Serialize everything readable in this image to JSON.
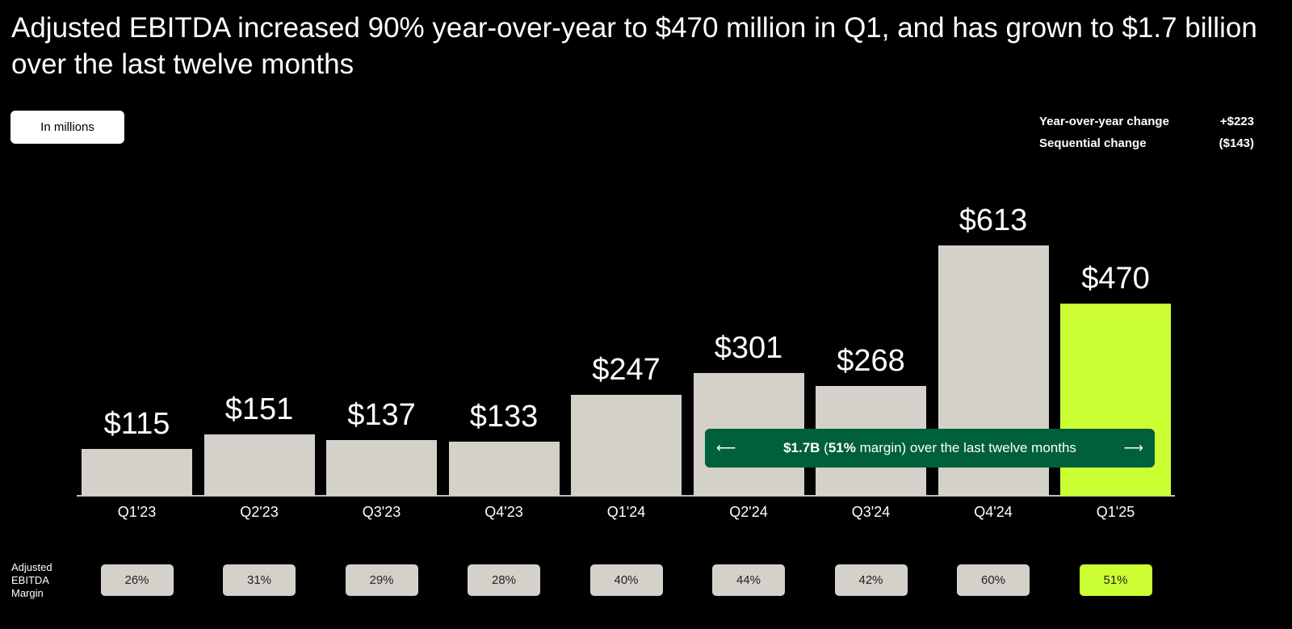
{
  "title": "Adjusted EBITDA increased 90% year-over-year to $470 million in Q1, and has grown to $1.7 billion over the last twelve months",
  "unit_label": "In millions",
  "stats": [
    {
      "label": "Year-over-year change",
      "value": "+$223"
    },
    {
      "label": "Sequential change",
      "value": "($143)"
    }
  ],
  "annotation": {
    "bold1": "$1.7B",
    "open": " (",
    "bold2": "51%",
    "rest": " margin) over the last twelve months",
    "left_arrow": "⟵",
    "right_arrow": "⟶"
  },
  "margin_label": "Adjusted EBITDA Margin",
  "colors": {
    "bar": "#d4d1cb",
    "highlight": "#ccff33",
    "annotation": "#006039"
  },
  "chart_data": {
    "type": "bar",
    "title": "Adjusted EBITDA",
    "ylabel": "In millions",
    "ylim": [
      0,
      613
    ],
    "categories": [
      "Q1'23",
      "Q2'23",
      "Q3'23",
      "Q4'23",
      "Q1'24",
      "Q2'24",
      "Q3'24",
      "Q4'24",
      "Q1'25"
    ],
    "values": [
      115,
      151,
      137,
      133,
      247,
      301,
      268,
      613,
      470
    ],
    "value_labels": [
      "$115",
      "$151",
      "$137",
      "$133",
      "$247",
      "$301",
      "$268",
      "$613",
      "$470"
    ],
    "margins": [
      "26%",
      "31%",
      "29%",
      "28%",
      "40%",
      "44%",
      "42%",
      "60%",
      "51%"
    ],
    "highlight_index": 8
  }
}
